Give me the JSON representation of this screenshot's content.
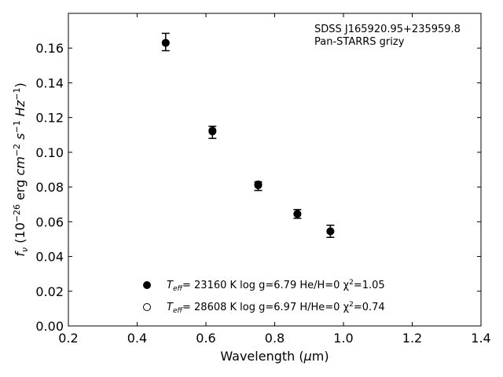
{
  "chart_data": {
    "type": "scatter",
    "xlabel": "Wavelength (μm)",
    "ylabel": "f_ν (10^-26 erg cm^-2 s^-1 Hz^-1)",
    "xlim": [
      0.2,
      1.4
    ],
    "ylim": [
      0.0,
      0.18
    ],
    "x_ticks": [
      0.2,
      0.4,
      0.6,
      0.8,
      1.0,
      1.2,
      1.4
    ],
    "x_tick_labels": [
      "0.2",
      "0.4",
      "0.6",
      "0.8",
      "1.0",
      "1.2",
      "1.4"
    ],
    "y_ticks": [
      0.0,
      0.02,
      0.04,
      0.06,
      0.08,
      0.1,
      0.12,
      0.14,
      0.16
    ],
    "y_tick_labels": [
      "0.00",
      "0.02",
      "0.04",
      "0.06",
      "0.08",
      "0.10",
      "0.12",
      "0.14",
      "0.16"
    ],
    "grid": false,
    "annotation": [
      "SDSS J165920.95+235959.8",
      "Pan-STARRS grizy"
    ],
    "series": [
      {
        "name": "Teff= 23160 K log g=6.79 He/H=0 χ2=1.05",
        "marker": "filled-circle",
        "color": "#000000",
        "x": [
          0.483,
          0.619,
          0.752,
          0.866,
          0.962
        ],
        "y": [
          0.163,
          0.112,
          0.081,
          0.0645,
          0.0545
        ]
      },
      {
        "name": "Teff= 28608 K log g=6.97 H/He=0 χ2=0.74",
        "marker": "open-circle",
        "color": "#000000",
        "x": [
          0.483,
          0.619,
          0.752,
          0.866,
          0.962
        ],
        "y": [
          0.163,
          0.1125,
          0.0815,
          0.0645,
          0.0545
        ]
      }
    ],
    "observed": {
      "marker": "errorbar",
      "x": [
        0.483,
        0.619,
        0.752,
        0.866,
        0.962
      ],
      "y": [
        0.1635,
        0.1115,
        0.0805,
        0.0645,
        0.0545
      ],
      "yerr": [
        0.005,
        0.0035,
        0.0025,
        0.0025,
        0.0035
      ]
    },
    "legend_position": "bottom-center",
    "legend": [
      {
        "marker": "filled-circle",
        "teff_sym": "T",
        "teff_sub": "eff",
        "value": "= 23160 K  log g=6.79  He/H=0  χ",
        "chi_sup": "2",
        "chi_val": "=1.05"
      },
      {
        "marker": "open-circle",
        "teff_sym": "T",
        "teff_sub": "eff",
        "value": "= 28608 K  log g=6.97  H/He=0  χ",
        "chi_sup": "2",
        "chi_val": "=0.74"
      }
    ]
  }
}
